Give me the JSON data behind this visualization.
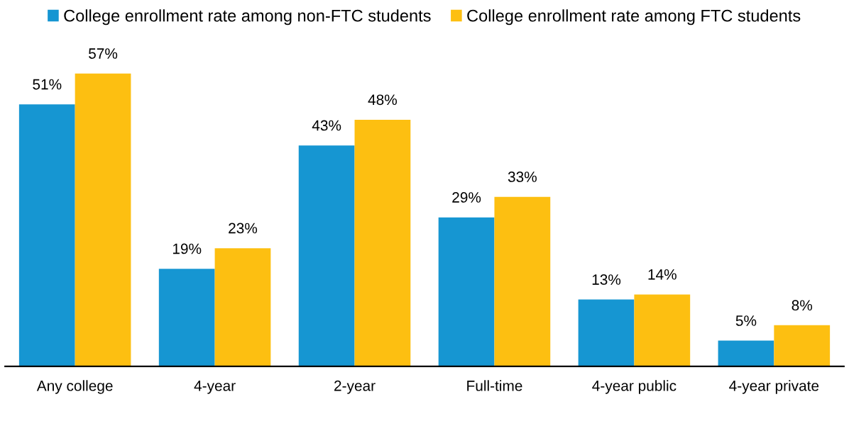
{
  "chart_data": {
    "type": "bar",
    "categories": [
      "Any college",
      "4-year",
      "2-year",
      "Full-time",
      "4-year public",
      "4-year private"
    ],
    "series": [
      {
        "name": "College enrollment rate among non-FTC students",
        "color": "#1696d2",
        "values": [
          51,
          19,
          43,
          29,
          13,
          5
        ],
        "value_labels": [
          "51%",
          "19%",
          "43%",
          "29%",
          "13%",
          "5%"
        ]
      },
      {
        "name": "College enrollment rate among FTC students",
        "color": "#fdbf11",
        "values": [
          57,
          23,
          48,
          33,
          14,
          8
        ],
        "value_labels": [
          "57%",
          "23%",
          "48%",
          "33%",
          "14%",
          "8%"
        ]
      }
    ],
    "legend": "top",
    "grid": false
  }
}
